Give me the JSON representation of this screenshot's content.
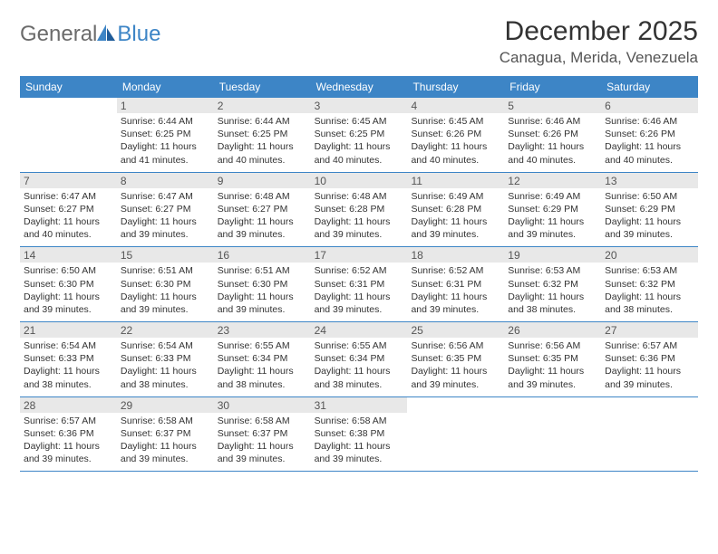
{
  "logo": {
    "word1": "General",
    "word2": "Blue"
  },
  "title": "December 2025",
  "location": "Canagua, Merida, Venezuela",
  "colors": {
    "brand_blue": "#3d85c6",
    "weekday_bg": "#3d85c6",
    "weekday_fg": "#ffffff",
    "daynum_bg": "#e8e8e8",
    "text": "#333333",
    "logo_gray": "#6b6b6b",
    "divider": "#3d85c6",
    "page_bg": "#ffffff"
  },
  "weekdays": [
    "Sunday",
    "Monday",
    "Tuesday",
    "Wednesday",
    "Thursday",
    "Friday",
    "Saturday"
  ],
  "weeks": [
    [
      {
        "n": "",
        "sr": "",
        "ss": "",
        "dl": ""
      },
      {
        "n": "1",
        "sr": "Sunrise: 6:44 AM",
        "ss": "Sunset: 6:25 PM",
        "dl": "Daylight: 11 hours and 41 minutes."
      },
      {
        "n": "2",
        "sr": "Sunrise: 6:44 AM",
        "ss": "Sunset: 6:25 PM",
        "dl": "Daylight: 11 hours and 40 minutes."
      },
      {
        "n": "3",
        "sr": "Sunrise: 6:45 AM",
        "ss": "Sunset: 6:25 PM",
        "dl": "Daylight: 11 hours and 40 minutes."
      },
      {
        "n": "4",
        "sr": "Sunrise: 6:45 AM",
        "ss": "Sunset: 6:26 PM",
        "dl": "Daylight: 11 hours and 40 minutes."
      },
      {
        "n": "5",
        "sr": "Sunrise: 6:46 AM",
        "ss": "Sunset: 6:26 PM",
        "dl": "Daylight: 11 hours and 40 minutes."
      },
      {
        "n": "6",
        "sr": "Sunrise: 6:46 AM",
        "ss": "Sunset: 6:26 PM",
        "dl": "Daylight: 11 hours and 40 minutes."
      }
    ],
    [
      {
        "n": "7",
        "sr": "Sunrise: 6:47 AM",
        "ss": "Sunset: 6:27 PM",
        "dl": "Daylight: 11 hours and 40 minutes."
      },
      {
        "n": "8",
        "sr": "Sunrise: 6:47 AM",
        "ss": "Sunset: 6:27 PM",
        "dl": "Daylight: 11 hours and 39 minutes."
      },
      {
        "n": "9",
        "sr": "Sunrise: 6:48 AM",
        "ss": "Sunset: 6:27 PM",
        "dl": "Daylight: 11 hours and 39 minutes."
      },
      {
        "n": "10",
        "sr": "Sunrise: 6:48 AM",
        "ss": "Sunset: 6:28 PM",
        "dl": "Daylight: 11 hours and 39 minutes."
      },
      {
        "n": "11",
        "sr": "Sunrise: 6:49 AM",
        "ss": "Sunset: 6:28 PM",
        "dl": "Daylight: 11 hours and 39 minutes."
      },
      {
        "n": "12",
        "sr": "Sunrise: 6:49 AM",
        "ss": "Sunset: 6:29 PM",
        "dl": "Daylight: 11 hours and 39 minutes."
      },
      {
        "n": "13",
        "sr": "Sunrise: 6:50 AM",
        "ss": "Sunset: 6:29 PM",
        "dl": "Daylight: 11 hours and 39 minutes."
      }
    ],
    [
      {
        "n": "14",
        "sr": "Sunrise: 6:50 AM",
        "ss": "Sunset: 6:30 PM",
        "dl": "Daylight: 11 hours and 39 minutes."
      },
      {
        "n": "15",
        "sr": "Sunrise: 6:51 AM",
        "ss": "Sunset: 6:30 PM",
        "dl": "Daylight: 11 hours and 39 minutes."
      },
      {
        "n": "16",
        "sr": "Sunrise: 6:51 AM",
        "ss": "Sunset: 6:30 PM",
        "dl": "Daylight: 11 hours and 39 minutes."
      },
      {
        "n": "17",
        "sr": "Sunrise: 6:52 AM",
        "ss": "Sunset: 6:31 PM",
        "dl": "Daylight: 11 hours and 39 minutes."
      },
      {
        "n": "18",
        "sr": "Sunrise: 6:52 AM",
        "ss": "Sunset: 6:31 PM",
        "dl": "Daylight: 11 hours and 39 minutes."
      },
      {
        "n": "19",
        "sr": "Sunrise: 6:53 AM",
        "ss": "Sunset: 6:32 PM",
        "dl": "Daylight: 11 hours and 38 minutes."
      },
      {
        "n": "20",
        "sr": "Sunrise: 6:53 AM",
        "ss": "Sunset: 6:32 PM",
        "dl": "Daylight: 11 hours and 38 minutes."
      }
    ],
    [
      {
        "n": "21",
        "sr": "Sunrise: 6:54 AM",
        "ss": "Sunset: 6:33 PM",
        "dl": "Daylight: 11 hours and 38 minutes."
      },
      {
        "n": "22",
        "sr": "Sunrise: 6:54 AM",
        "ss": "Sunset: 6:33 PM",
        "dl": "Daylight: 11 hours and 38 minutes."
      },
      {
        "n": "23",
        "sr": "Sunrise: 6:55 AM",
        "ss": "Sunset: 6:34 PM",
        "dl": "Daylight: 11 hours and 38 minutes."
      },
      {
        "n": "24",
        "sr": "Sunrise: 6:55 AM",
        "ss": "Sunset: 6:34 PM",
        "dl": "Daylight: 11 hours and 38 minutes."
      },
      {
        "n": "25",
        "sr": "Sunrise: 6:56 AM",
        "ss": "Sunset: 6:35 PM",
        "dl": "Daylight: 11 hours and 39 minutes."
      },
      {
        "n": "26",
        "sr": "Sunrise: 6:56 AM",
        "ss": "Sunset: 6:35 PM",
        "dl": "Daylight: 11 hours and 39 minutes."
      },
      {
        "n": "27",
        "sr": "Sunrise: 6:57 AM",
        "ss": "Sunset: 6:36 PM",
        "dl": "Daylight: 11 hours and 39 minutes."
      }
    ],
    [
      {
        "n": "28",
        "sr": "Sunrise: 6:57 AM",
        "ss": "Sunset: 6:36 PM",
        "dl": "Daylight: 11 hours and 39 minutes."
      },
      {
        "n": "29",
        "sr": "Sunrise: 6:58 AM",
        "ss": "Sunset: 6:37 PM",
        "dl": "Daylight: 11 hours and 39 minutes."
      },
      {
        "n": "30",
        "sr": "Sunrise: 6:58 AM",
        "ss": "Sunset: 6:37 PM",
        "dl": "Daylight: 11 hours and 39 minutes."
      },
      {
        "n": "31",
        "sr": "Sunrise: 6:58 AM",
        "ss": "Sunset: 6:38 PM",
        "dl": "Daylight: 11 hours and 39 minutes."
      },
      {
        "n": "",
        "sr": "",
        "ss": "",
        "dl": ""
      },
      {
        "n": "",
        "sr": "",
        "ss": "",
        "dl": ""
      },
      {
        "n": "",
        "sr": "",
        "ss": "",
        "dl": ""
      }
    ]
  ]
}
